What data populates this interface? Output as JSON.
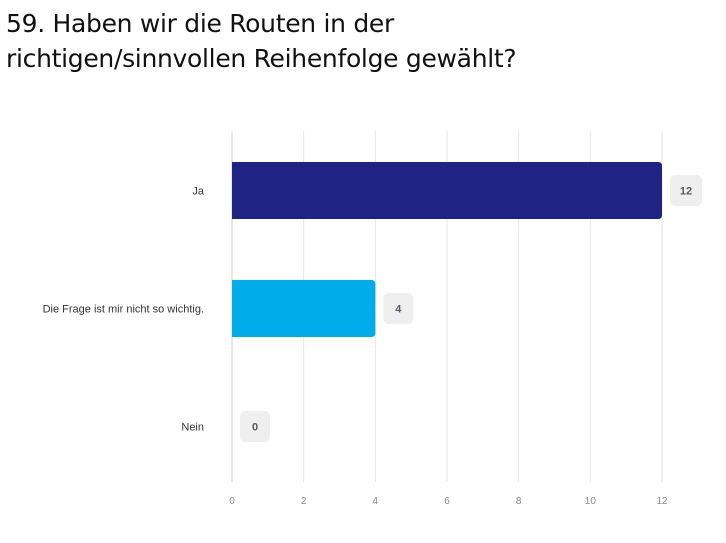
{
  "title_lines": [
    "59. Haben wir die Routen in der",
    "richtigen/sinnvollen Reihenfolge gewählt?"
  ],
  "chart_data": {
    "type": "bar",
    "orientation": "horizontal",
    "title": "59. Haben wir die Routen in der richtigen/sinnvollen Reihenfolge gewählt?",
    "categories": [
      "Ja",
      "Die Frage ist mir nicht so wichtig.",
      "Nein"
    ],
    "values": [
      12,
      4,
      0
    ],
    "colors": [
      "#1e2384",
      "#00adea",
      "#cccccc"
    ],
    "xlim": [
      0,
      12
    ],
    "xticks": [
      0,
      2,
      4,
      6,
      8,
      10,
      12
    ],
    "grid": true,
    "value_badge_color": "#efefef",
    "gridline_color": "#e6e6e6",
    "axis_color": "#cfcfcf"
  }
}
